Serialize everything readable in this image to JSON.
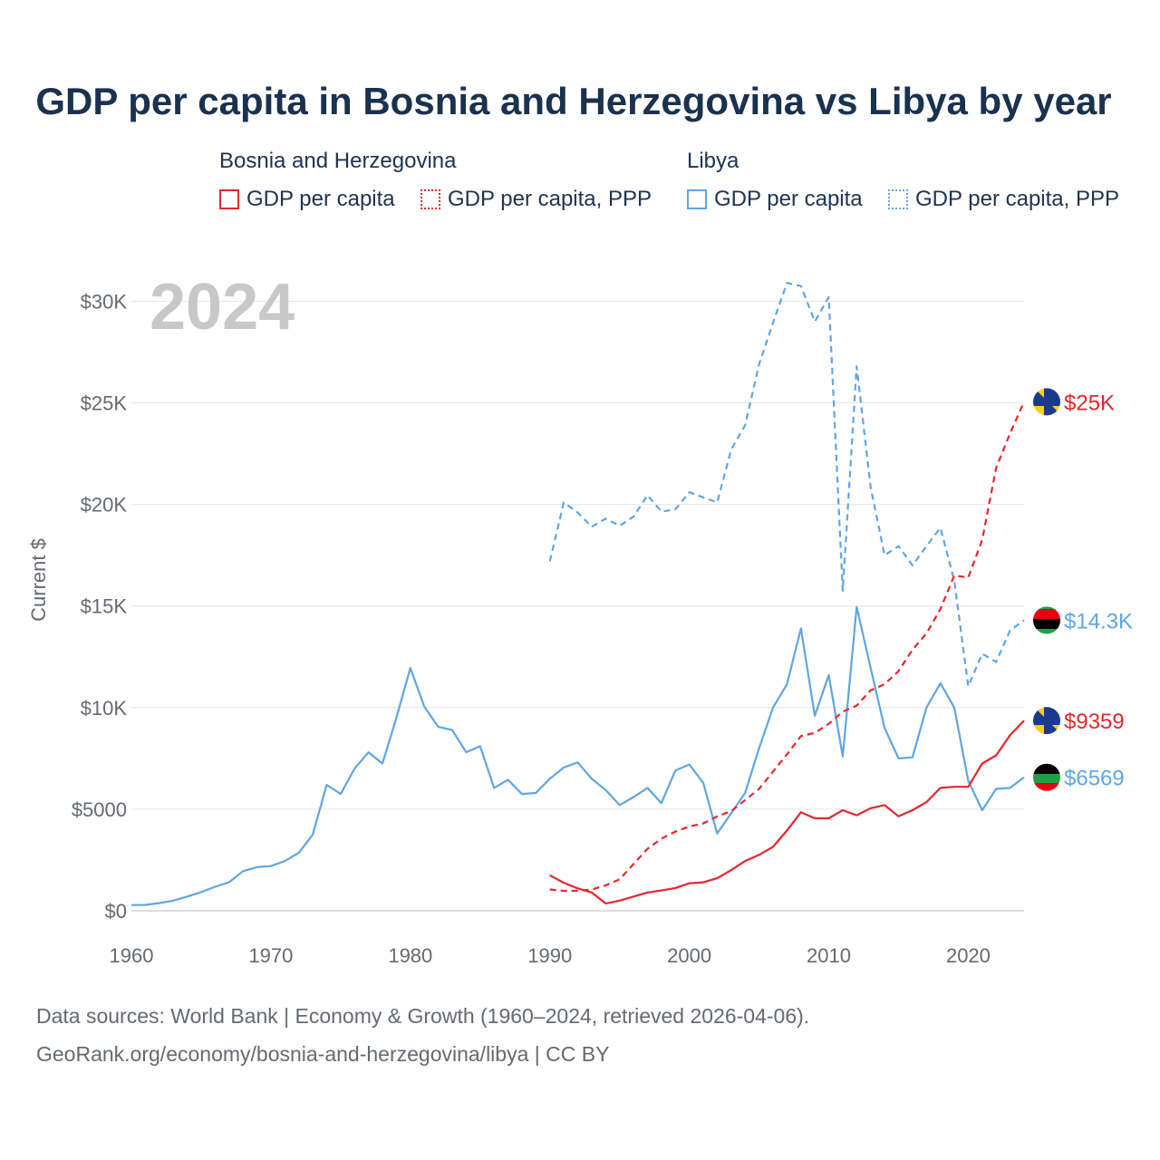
{
  "chart_data": {
    "type": "line",
    "title": "GDP per capita in Bosnia and Herzegovina vs Libya by year",
    "year_watermark": "2024",
    "ylabel": "Current $",
    "xlabel": "",
    "xlim": [
      1960,
      2024
    ],
    "ylim": [
      0,
      31000
    ],
    "x_ticks": [
      1960,
      1970,
      1980,
      1990,
      2000,
      2010,
      2020
    ],
    "y_ticks": [
      {
        "value": 0,
        "label": "$0"
      },
      {
        "value": 5000,
        "label": "$5000"
      },
      {
        "value": 10000,
        "label": "$10K"
      },
      {
        "value": 15000,
        "label": "$15K"
      },
      {
        "value": 20000,
        "label": "$20K"
      },
      {
        "value": 25000,
        "label": "$25K"
      },
      {
        "value": 30000,
        "label": "$30K"
      }
    ],
    "legend_groups": [
      {
        "country": "Bosnia and Herzegovina",
        "items": [
          "GDP per capita",
          "GDP per capita, PPP"
        ],
        "color": "#e8262b"
      },
      {
        "country": "Libya",
        "items": [
          "GDP per capita",
          "GDP per capita, PPP"
        ],
        "color": "#5fa6e4"
      }
    ],
    "series": [
      {
        "name": "Libya GDP per capita",
        "country": "Libya",
        "style": "solid",
        "color": "#5fa6e4",
        "end_label": "$6569",
        "x": [
          1960,
          1961,
          1962,
          1963,
          1964,
          1965,
          1966,
          1967,
          1968,
          1969,
          1970,
          1971,
          1972,
          1973,
          1974,
          1975,
          1976,
          1977,
          1978,
          1979,
          1980,
          1981,
          1982,
          1983,
          1984,
          1985,
          1986,
          1987,
          1988,
          1989,
          1990,
          1991,
          1992,
          1993,
          1994,
          1995,
          1996,
          1997,
          1998,
          1999,
          2000,
          2001,
          2002,
          2003,
          2004,
          2005,
          2006,
          2007,
          2008,
          2009,
          2010,
          2011,
          2012,
          2013,
          2014,
          2015,
          2016,
          2017,
          2018,
          2019,
          2020,
          2021,
          2022,
          2023,
          2024
        ],
        "values": [
          280,
          290,
          380,
          500,
          700,
          920,
          1180,
          1400,
          1950,
          2150,
          2200,
          2450,
          2850,
          3750,
          6200,
          5750,
          7000,
          7800,
          7250,
          9500,
          11950,
          10050,
          9050,
          8900,
          7800,
          8100,
          6050,
          6450,
          5750,
          5800,
          6500,
          7050,
          7300,
          6500,
          5950,
          5200,
          5600,
          6050,
          5300,
          6900,
          7200,
          6300,
          3800,
          4800,
          5800,
          8000,
          10000,
          11150,
          13900,
          9600,
          11600,
          7600,
          14950,
          11950,
          9000,
          7500,
          7550,
          10000,
          11200,
          10000,
          6400,
          4950,
          6000,
          6050,
          6569
        ]
      },
      {
        "name": "Libya GDP per capita, PPP",
        "country": "Libya",
        "style": "dashed",
        "color": "#5fa6e4",
        "end_label": "$14.3K",
        "x": [
          1990,
          1991,
          1992,
          1993,
          1994,
          1995,
          1996,
          1997,
          1998,
          1999,
          2000,
          2001,
          2002,
          2003,
          2004,
          2005,
          2006,
          2007,
          2008,
          2009,
          2010,
          2011,
          2012,
          2013,
          2014,
          2015,
          2016,
          2017,
          2018,
          2019,
          2020,
          2021,
          2022,
          2023,
          2024
        ],
        "values": [
          17200,
          20100,
          19600,
          18900,
          19300,
          18950,
          19400,
          20450,
          19650,
          19750,
          20600,
          20350,
          20100,
          22700,
          23900,
          26900,
          28950,
          30900,
          30750,
          29000,
          30200,
          15750,
          26800,
          20850,
          17500,
          17950,
          17000,
          17950,
          18850,
          16250,
          11050,
          12650,
          12250,
          13800,
          14300
        ]
      },
      {
        "name": "Bosnia and Herzegovina GDP per capita",
        "country": "Bosnia and Herzegovina",
        "style": "solid",
        "color": "#e8262b",
        "end_label": "$9359",
        "x": [
          1990,
          1991,
          1992,
          1993,
          1994,
          1995,
          1996,
          1997,
          1998,
          1999,
          2000,
          2001,
          2002,
          2003,
          2004,
          2005,
          2006,
          2007,
          2008,
          2009,
          2010,
          2011,
          2012,
          2013,
          2014,
          2015,
          2016,
          2017,
          2018,
          2019,
          2020,
          2021,
          2022,
          2023,
          2024
        ],
        "values": [
          1750,
          1380,
          1100,
          900,
          360,
          500,
          700,
          900,
          1000,
          1120,
          1350,
          1400,
          1600,
          2000,
          2450,
          2750,
          3150,
          3950,
          4850,
          4550,
          4550,
          4950,
          4700,
          5050,
          5200,
          4650,
          4950,
          5350,
          6050,
          6100,
          6100,
          7250,
          7650,
          8650,
          9359
        ]
      },
      {
        "name": "Bosnia and Herzegovina GDP per capita, PPP",
        "country": "Bosnia and Herzegovina",
        "style": "dashed",
        "color": "#e8262b",
        "end_label": "$25K",
        "x": [
          1990,
          1991,
          1992,
          1993,
          1994,
          1995,
          1996,
          1997,
          1998,
          1999,
          2000,
          2001,
          2002,
          2003,
          2004,
          2005,
          2006,
          2007,
          2008,
          2009,
          2010,
          2011,
          2012,
          2013,
          2014,
          2015,
          2016,
          2017,
          2018,
          2019,
          2020,
          2021,
          2022,
          2023,
          2024
        ],
        "values": [
          1050,
          980,
          980,
          1050,
          1250,
          1550,
          2300,
          3050,
          3550,
          3900,
          4150,
          4300,
          4650,
          4900,
          5450,
          6000,
          6850,
          7700,
          8600,
          8750,
          9200,
          9800,
          10100,
          10850,
          11150,
          11800,
          12850,
          13650,
          14850,
          16500,
          16400,
          18250,
          21800,
          23500,
          25050
        ]
      }
    ]
  },
  "legend": {
    "group1_title": "Bosnia and Herzegovina",
    "group1_item1": "GDP per capita",
    "group1_item2": "GDP per capita, PPP",
    "group2_title": "Libya",
    "group2_item1": "GDP per capita",
    "group2_item2": "GDP per capita, PPP"
  },
  "footer": {
    "line1": "Data sources: World Bank | Economy & Growth (1960–2024, retrieved 2026-04-06).",
    "line2": "GeoRank.org/economy/bosnia-and-herzegovina/libya | CC BY"
  }
}
